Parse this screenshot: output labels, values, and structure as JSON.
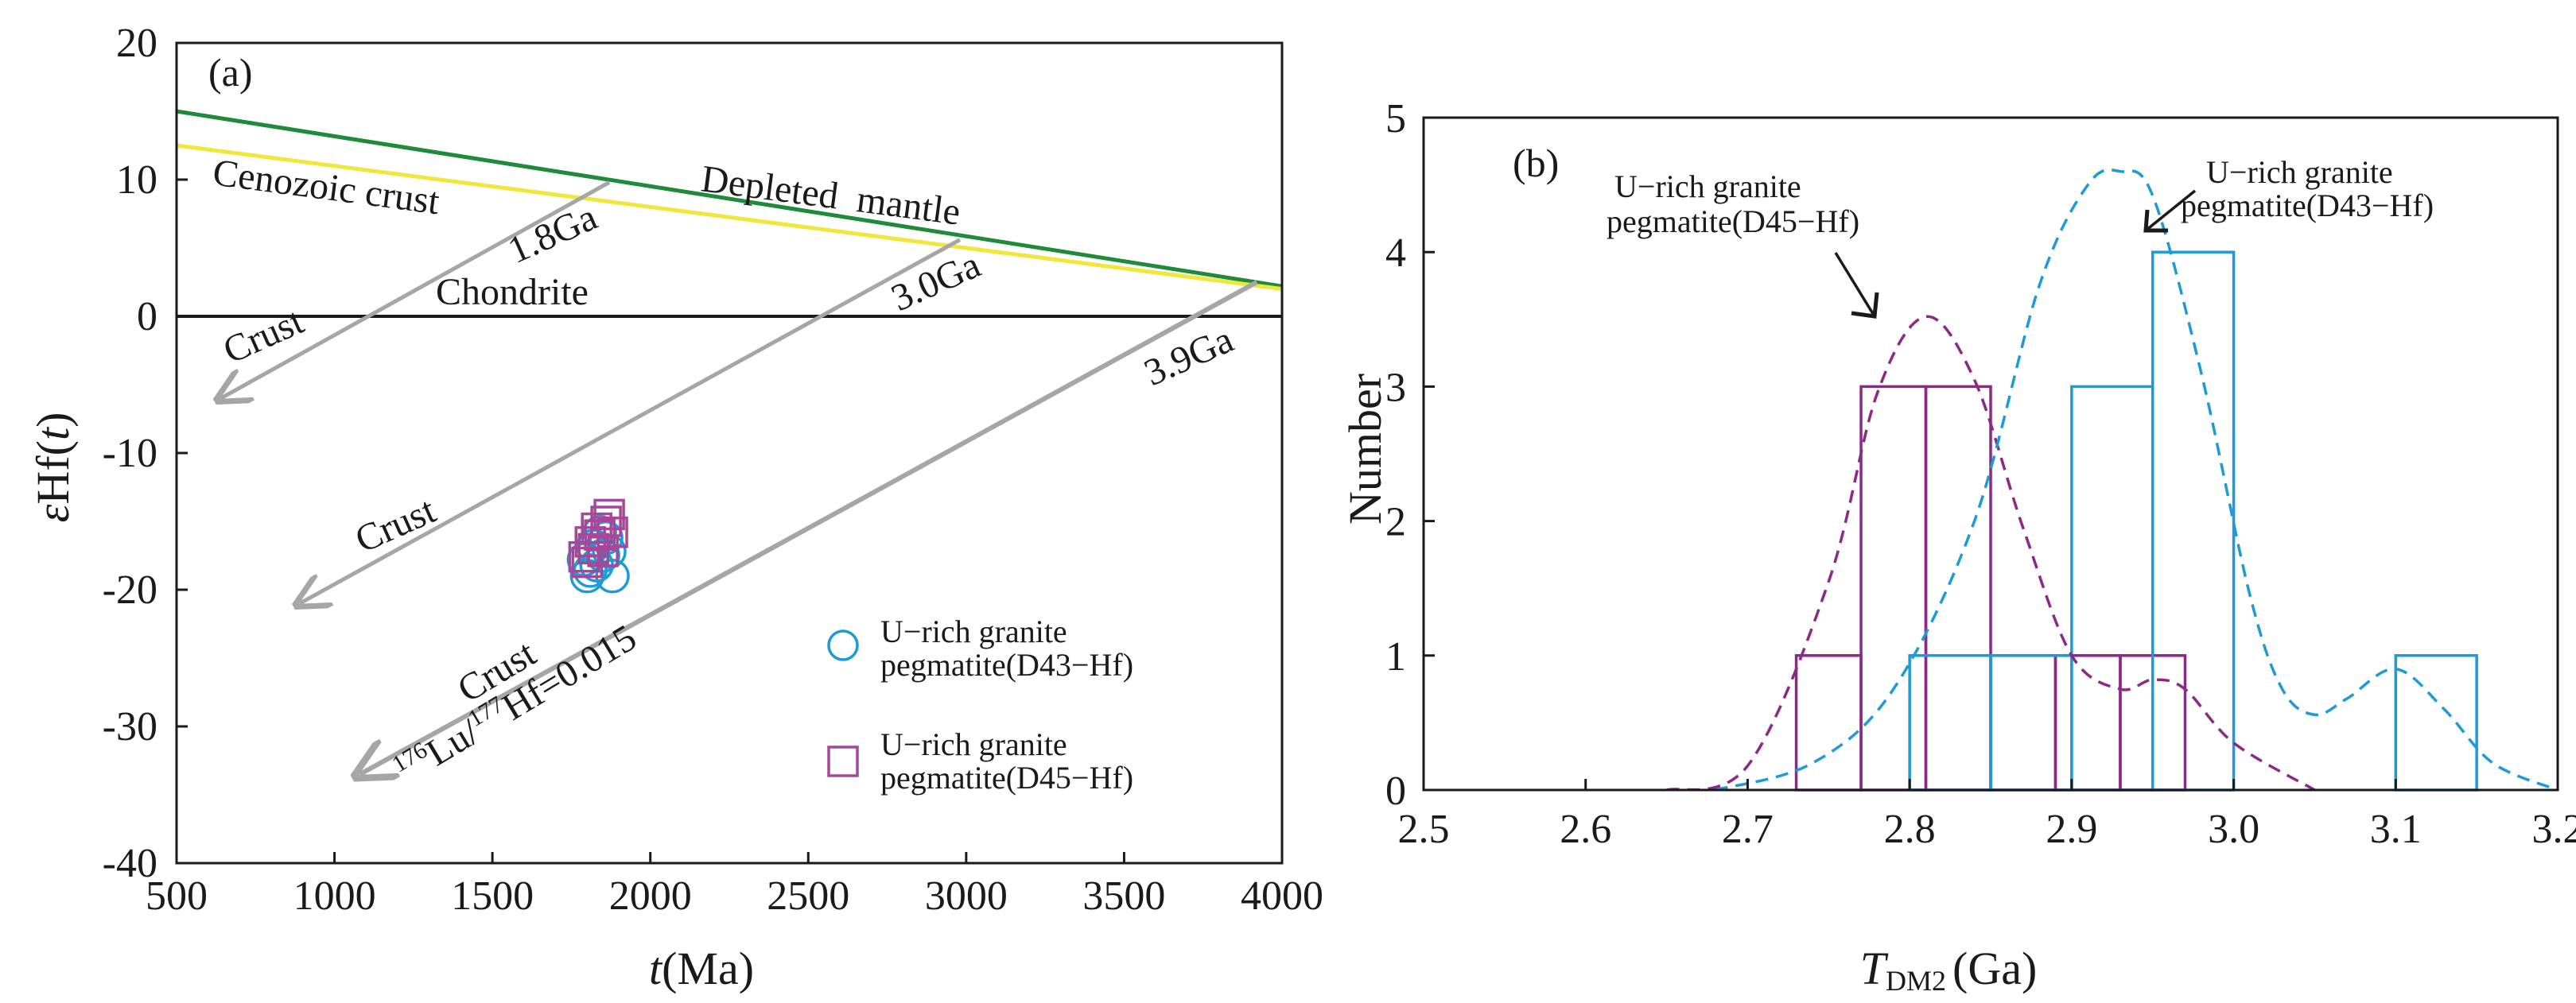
{
  "chart_data": [
    {
      "type": "scatter",
      "panel_label": "(a)",
      "xlabel_italic": "t",
      "xlabel_rest": "(Ma)",
      "ylabel_prefix": "ε",
      "ylabel_mid": "Hf(",
      "ylabel_italic": "t",
      "ylabel_suffix": ")",
      "xlim": [
        500,
        4000
      ],
      "ylim": [
        -40,
        20
      ],
      "xticks": [
        500,
        1000,
        1500,
        2000,
        2500,
        3000,
        3500,
        4000
      ],
      "yticks": [
        -40,
        -30,
        -20,
        -10,
        0,
        10,
        20
      ],
      "reference_lines": [
        {
          "name": "Depleted  mantle",
          "color": "#1e8a3a",
          "x": [
            500,
            4000
          ],
          "y": [
            15,
            2.2
          ]
        },
        {
          "name": "Cenozoic crust",
          "color": "#f0e63c",
          "x": [
            500,
            4000
          ],
          "y": [
            12.5,
            2.0
          ]
        },
        {
          "name": "Chondrite",
          "color": "#1a1a1a",
          "x": [
            500,
            4000
          ],
          "y": [
            0,
            0
          ]
        }
      ],
      "evolution_arrows": [
        {
          "age_label": "1.8Ga",
          "crust_label": "Crust",
          "from": [
            1870,
            9.8
          ],
          "to": [
            640,
            -6
          ]
        },
        {
          "age_label": "3.0Ga",
          "crust_label": "Crust",
          "from": [
            2980,
            5.6
          ],
          "to": [
            890,
            -21
          ]
        },
        {
          "age_label": "3.9Ga",
          "crust_label": "Crust",
          "from": [
            3920,
            2.5
          ],
          "to": [
            1080,
            -33.5
          ]
        }
      ],
      "lu_hf_label_mass1": "176",
      "lu_hf_label_el1": "Lu/",
      "lu_hf_label_mass2": "177",
      "lu_hf_label_el2": "Hf=0.015",
      "series": [
        {
          "name_line1": "U−rich granite",
          "name_line2": "pegmatite(D43−Hf)",
          "marker": "circle",
          "color": "#1e9ad6",
          "points": [
            [
              1800,
              -19
            ],
            [
              1880,
              -19
            ],
            [
              1830,
              -18.2
            ],
            [
              1850,
              -17.5
            ],
            [
              1790,
              -17.8
            ],
            [
              1820,
              -16.8
            ],
            [
              1860,
              -16.2
            ],
            [
              1840,
              -15.8
            ],
            [
              1810,
              -18.6
            ],
            [
              1870,
              -17.2
            ]
          ]
        },
        {
          "name_line1": "U−rich granite",
          "name_line2": "pegmatite(D45−Hf)",
          "marker": "square",
          "color": "#a8479a",
          "points": [
            [
              1800,
              -18
            ],
            [
              1820,
              -17
            ],
            [
              1840,
              -16
            ],
            [
              1860,
              -15
            ],
            [
              1870,
              -14.5
            ],
            [
              1830,
              -15.5
            ],
            [
              1810,
              -16.5
            ],
            [
              1850,
              -17.2
            ],
            [
              1790,
              -17.6
            ],
            [
              1880,
              -15.8
            ]
          ]
        }
      ]
    },
    {
      "type": "bar",
      "panel_label": "(b)",
      "xlabel_italic": "T",
      "xlabel_sub": "DM2",
      "xlabel_rest": "(Ga)",
      "ylabel": "Number",
      "xlim": [
        2.5,
        3.2
      ],
      "ylim": [
        0,
        5
      ],
      "xticks": [
        "2.5",
        "2.6",
        "2.7",
        "2.8",
        "2.9",
        "3.0",
        "3.1",
        "3.2"
      ],
      "yticks": [
        "0",
        "1",
        "2",
        "3",
        "4",
        "5"
      ],
      "series": [
        {
          "name_line1": "U−rich granite",
          "name_line2": "pegmatite(D45−Hf)",
          "color": "#8a2a86",
          "bins": [
            {
              "x0": 2.73,
              "x1": 2.77,
              "count": 1
            },
            {
              "x0": 2.77,
              "x1": 2.81,
              "count": 3
            },
            {
              "x0": 2.81,
              "x1": 2.85,
              "count": 3
            },
            {
              "x0": 2.85,
              "x1": 2.89,
              "count": 1
            },
            {
              "x0": 2.89,
              "x1": 2.93,
              "count": 1
            },
            {
              "x0": 2.93,
              "x1": 2.97,
              "count": 1
            }
          ],
          "curve": [
            [
              2.65,
              0
            ],
            [
              2.7,
              0.18
            ],
            [
              2.75,
              1.55
            ],
            [
              2.78,
              2.95
            ],
            [
              2.81,
              3.52
            ],
            [
              2.84,
              3.05
            ],
            [
              2.87,
              1.95
            ],
            [
              2.9,
              1.0
            ],
            [
              2.93,
              0.75
            ],
            [
              2.95,
              0.82
            ],
            [
              2.97,
              0.75
            ],
            [
              3.0,
              0.35
            ],
            [
              3.05,
              0
            ]
          ]
        },
        {
          "name_line1": "U−rich granite",
          "name_line2": "pegmatite(D43−Hf)",
          "color": "#1e9ad6",
          "bins": [
            {
              "x0": 2.8,
              "x1": 2.85,
              "count": 1
            },
            {
              "x0": 2.85,
              "x1": 2.9,
              "count": 1
            },
            {
              "x0": 2.9,
              "x1": 2.95,
              "count": 3
            },
            {
              "x0": 2.95,
              "x1": 3.0,
              "count": 4
            },
            {
              "x0": 3.1,
              "x1": 3.15,
              "count": 1
            }
          ],
          "curve": [
            [
              2.68,
              0
            ],
            [
              2.74,
              0.2
            ],
            [
              2.79,
              0.75
            ],
            [
              2.84,
              2.0
            ],
            [
              2.88,
              3.75
            ],
            [
              2.91,
              4.5
            ],
            [
              2.93,
              4.6
            ],
            [
              2.95,
              4.42
            ],
            [
              2.98,
              3.1
            ],
            [
              3.01,
              1.45
            ],
            [
              3.03,
              0.75
            ],
            [
              3.05,
              0.56
            ],
            [
              3.07,
              0.68
            ],
            [
              3.1,
              0.9
            ],
            [
              3.13,
              0.6
            ],
            [
              3.16,
              0.2
            ],
            [
              3.2,
              0
            ]
          ]
        }
      ]
    }
  ]
}
